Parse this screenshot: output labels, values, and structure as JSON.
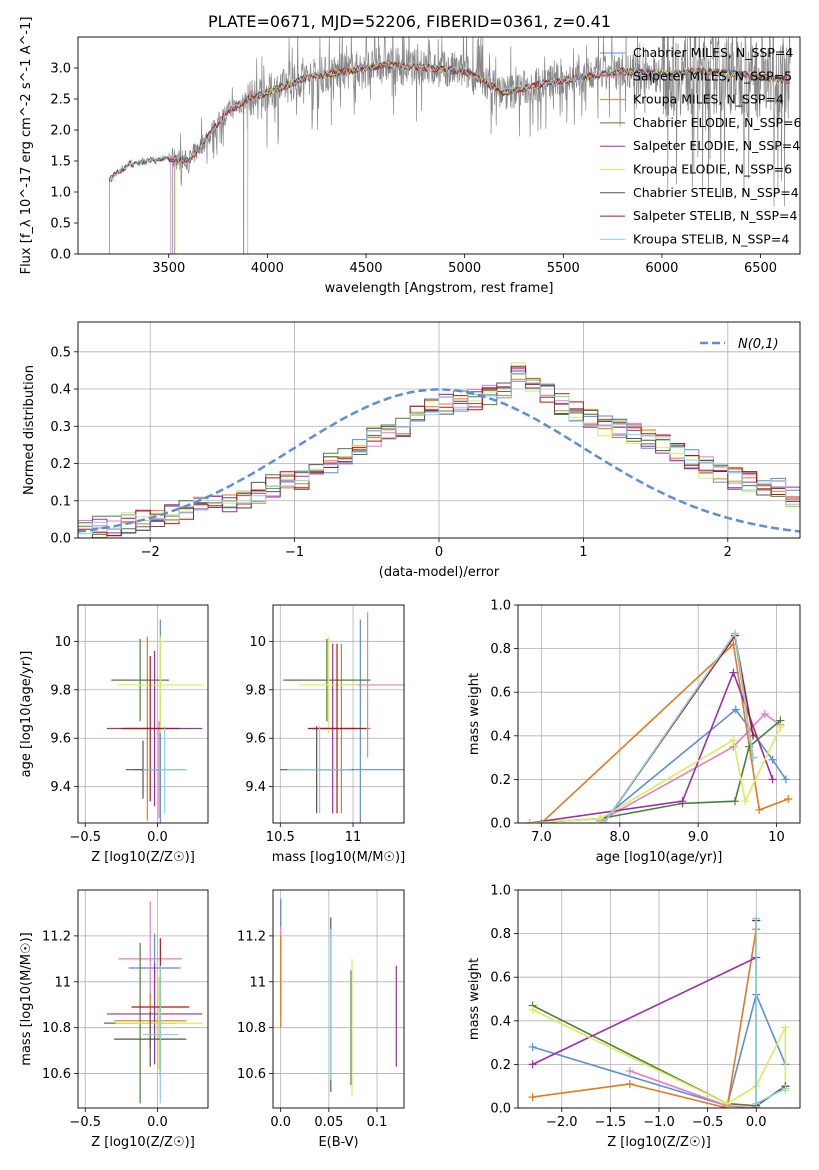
{
  "figure": {
    "title": "PLATE=0671, MJD=52206, FIBERID=0361, z=0.41"
  },
  "colors": {
    "chabrier_miles": "#5b8fd6",
    "salpeter_miles": "#e37fbf",
    "kroupa_miles": "#e07b22",
    "chabrier_elodie": "#4d7f3c",
    "salpeter_elodie": "#9a30a8",
    "kroupa_elodie": "#d9ec5a",
    "chabrier_stelib": "#555555",
    "salpeter_stelib": "#b01616",
    "kroupa_stelib": "#8fd0dd",
    "normal_curve": "#5b8fd6"
  },
  "chart_data": [
    {
      "type": "line",
      "panel": "spectrum",
      "xlabel": "wavelength [Angstrom, rest frame]",
      "ylabel": "Flux [f_λ 10^-17 erg cm^-2 s^-1 A^-1]",
      "xlim": [
        3040,
        6700
      ],
      "ylim": [
        0,
        3.5
      ],
      "xticks": [
        3500,
        4000,
        4500,
        5000,
        5500,
        6000,
        6500
      ],
      "yticks": [
        0.0,
        0.5,
        1.0,
        1.5,
        2.0,
        2.5,
        3.0
      ],
      "legend_loc": "upper right",
      "legend": [
        "Chabrier MILES, N_SSP=4",
        "Salpeter MILES, N_SSP=5",
        "Kroupa MILES, N_SSP=4",
        "Chabrier ELODIE, N_SSP=6",
        "Salpeter ELODIE, N_SSP=4",
        "Kroupa ELODIE, N_SSP=6",
        "Chabrier STELIB, N_SSP=4",
        "Salpeter STELIB, N_SSP=4",
        "Kroupa STELIB, N_SSP=4"
      ],
      "continuum_x": [
        3200,
        3300,
        3400,
        3500,
        3600,
        3700,
        3800,
        3900,
        4000,
        4200,
        4400,
        4600,
        4800,
        5000,
        5200,
        5400,
        5600,
        5800,
        6000,
        6200,
        6400,
        6650
      ],
      "continuum_y": [
        1.2,
        1.45,
        1.5,
        1.55,
        1.5,
        1.9,
        2.3,
        2.5,
        2.6,
        2.85,
        2.95,
        3.05,
        3.0,
        2.95,
        2.6,
        2.75,
        2.85,
        2.95,
        2.9,
        2.95,
        2.9,
        2.8
      ],
      "data_x_range": [
        3200,
        6650
      ]
    },
    {
      "type": "step",
      "panel": "residuals",
      "xlabel": "(data-model)/error",
      "ylabel": "Normed distribution",
      "xlim": [
        -2.5,
        2.5
      ],
      "ylim": [
        0,
        0.58
      ],
      "xticks": [
        -2,
        -1,
        0,
        1,
        2
      ],
      "yticks": [
        0.0,
        0.1,
        0.2,
        0.3,
        0.4,
        0.5
      ],
      "legend_loc": "upper right",
      "normal_label": "N(0,1)",
      "bin_edges_start": -2.5,
      "bin_width": 0.1,
      "hist_values": [
        0.02,
        0.03,
        0.035,
        0.04,
        0.05,
        0.055,
        0.06,
        0.07,
        0.08,
        0.095,
        0.1,
        0.11,
        0.12,
        0.14,
        0.15,
        0.16,
        0.18,
        0.2,
        0.22,
        0.25,
        0.27,
        0.29,
        0.3,
        0.33,
        0.35,
        0.36,
        0.37,
        0.37,
        0.38,
        0.39,
        0.45,
        0.42,
        0.39,
        0.36,
        0.34,
        0.32,
        0.3,
        0.29,
        0.28,
        0.27,
        0.25,
        0.23,
        0.21,
        0.19,
        0.17,
        0.16,
        0.15,
        0.14,
        0.13,
        0.11,
        0.1,
        0.09,
        0.08,
        0.07,
        0.06,
        0.05,
        0.045,
        0.04,
        0.035,
        0.03
      ]
    },
    {
      "type": "scatter",
      "panel": "age_vs_Z",
      "xlabel": "Z [log10(Z/Z☉)]",
      "ylabel": "age [log10(age/yr)]",
      "xlim": [
        -0.55,
        0.35
      ],
      "ylim": [
        9.25,
        10.15
      ],
      "xticks": [
        -0.5,
        0.0
      ],
      "yticks": [
        9.4,
        9.6,
        9.8,
        10.0
      ],
      "points": [
        {
          "x": 0.02,
          "y": 9.47,
          "xerr": 0.18,
          "yerr": 0.62,
          "c": "chabrier_miles"
        },
        {
          "x": 0.01,
          "y": 9.47,
          "xerr": 0.12,
          "yerr": 0.2,
          "c": "salpeter_miles"
        },
        {
          "x": -0.07,
          "y": 9.64,
          "xerr": 0.15,
          "yerr": 0.38,
          "c": "kroupa_miles"
        },
        {
          "x": -0.12,
          "y": 9.84,
          "xerr": 0.2,
          "yerr": 0.17,
          "c": "chabrier_elodie"
        },
        {
          "x": -0.02,
          "y": 9.64,
          "xerr": 0.33,
          "yerr": 0.32,
          "c": "salpeter_elodie"
        },
        {
          "x": 0.02,
          "y": 9.82,
          "xerr": 0.3,
          "yerr": 0.2,
          "c": "kroupa_elodie"
        },
        {
          "x": -0.1,
          "y": 9.47,
          "xerr": 0.12,
          "yerr": 0.12,
          "c": "chabrier_stelib"
        },
        {
          "x": -0.05,
          "y": 9.64,
          "xerr": 0.2,
          "yerr": 0.3,
          "c": "salpeter_stelib"
        },
        {
          "x": 0.05,
          "y": 9.47,
          "xerr": 0.15,
          "yerr": 0.18,
          "c": "kroupa_stelib"
        }
      ]
    },
    {
      "type": "scatter",
      "panel": "age_vs_mass",
      "xlabel": "mass [log10(M/M☉)]",
      "ylabel": "",
      "xlim": [
        10.45,
        11.35
      ],
      "ylim": [
        9.25,
        10.15
      ],
      "xticks": [
        10.5,
        11.0
      ],
      "yticks": [
        9.4,
        9.6,
        9.8,
        10.0
      ],
      "points": [
        {
          "x": 11.05,
          "y": 9.47,
          "xerr": 0.3,
          "yerr": 0.62,
          "c": "chabrier_miles"
        },
        {
          "x": 11.1,
          "y": 9.82,
          "xerr": 0.25,
          "yerr": 0.3,
          "c": "salpeter_miles"
        },
        {
          "x": 10.92,
          "y": 9.64,
          "xerr": 0.2,
          "yerr": 0.35,
          "c": "kroupa_miles"
        },
        {
          "x": 10.82,
          "y": 9.84,
          "xerr": 0.3,
          "yerr": 0.17,
          "c": "chabrier_elodie"
        },
        {
          "x": 10.86,
          "y": 9.64,
          "xerr": 0.15,
          "yerr": 0.35,
          "c": "salpeter_elodie"
        },
        {
          "x": 10.83,
          "y": 9.82,
          "xerr": 0.2,
          "yerr": 0.2,
          "c": "kroupa_elodie"
        },
        {
          "x": 10.75,
          "y": 9.47,
          "xerr": 0.25,
          "yerr": 0.18,
          "c": "chabrier_stelib"
        },
        {
          "x": 10.89,
          "y": 9.64,
          "xerr": 0.2,
          "yerr": 0.35,
          "c": "salpeter_stelib"
        },
        {
          "x": 10.77,
          "y": 9.47,
          "xerr": 0.22,
          "yerr": 0.18,
          "c": "kroupa_stelib"
        }
      ]
    },
    {
      "type": "line",
      "panel": "weight_vs_age",
      "xlabel": "age [log10(age/yr)]",
      "ylabel": "mass weight",
      "xlim": [
        6.7,
        10.3
      ],
      "ylim": [
        0,
        1.0
      ],
      "xticks": [
        7,
        8,
        9,
        10
      ],
      "yticks": [
        0.0,
        0.2,
        0.4,
        0.6,
        0.8,
        1.0
      ],
      "series": [
        {
          "c": "chabrier_miles",
          "x": [
            7.75,
            9.48,
            9.95,
            10.12
          ],
          "y": [
            0.01,
            0.52,
            0.29,
            0.2
          ]
        },
        {
          "c": "salpeter_miles",
          "x": [
            7.75,
            9.45,
            9.85,
            10.05
          ],
          "y": [
            0.01,
            0.35,
            0.5,
            0.45
          ]
        },
        {
          "c": "kroupa_miles",
          "x": [
            7.0,
            9.45,
            9.78,
            10.15
          ],
          "y": [
            0.0,
            0.82,
            0.06,
            0.11
          ]
        },
        {
          "c": "chabrier_elodie",
          "x": [
            6.85,
            7.75,
            8.8,
            9.47,
            9.65,
            10.05
          ],
          "y": [
            0.0,
            0.02,
            0.09,
            0.1,
            0.35,
            0.47
          ]
        },
        {
          "c": "salpeter_elodie",
          "x": [
            6.85,
            8.8,
            9.45,
            9.95
          ],
          "y": [
            0.0,
            0.1,
            0.69,
            0.2
          ]
        },
        {
          "c": "kroupa_elodie",
          "x": [
            6.85,
            7.75,
            9.45,
            9.6,
            10.05
          ],
          "y": [
            0.0,
            0.02,
            0.38,
            0.1,
            0.44
          ]
        },
        {
          "c": "chabrier_stelib",
          "x": [
            7.8,
            9.47,
            9.7
          ],
          "y": [
            0.0,
            0.86,
            0.3
          ]
        },
        {
          "c": "salpeter_stelib",
          "x": [
            7.8,
            9.47,
            9.7
          ],
          "y": [
            0.0,
            0.86,
            0.4
          ]
        },
        {
          "c": "kroupa_stelib",
          "x": [
            7.8,
            9.47,
            9.7
          ],
          "y": [
            0.0,
            0.87,
            0.3
          ]
        }
      ]
    },
    {
      "type": "scatter",
      "panel": "mass_vs_Z",
      "xlabel": "Z [log10(Z/Z☉)]",
      "ylabel": "mass [log10(M/M☉)]",
      "xlim": [
        -0.55,
        0.35
      ],
      "ylim": [
        10.45,
        11.4
      ],
      "xticks": [
        -0.5,
        0.0
      ],
      "yticks": [
        10.6,
        10.8,
        11.0,
        11.2
      ],
      "points": [
        {
          "x": -0.02,
          "y": 11.06,
          "xerr": 0.18,
          "yerr": 0.15,
          "c": "chabrier_miles"
        },
        {
          "x": -0.05,
          "y": 11.1,
          "xerr": 0.22,
          "yerr": 0.25,
          "c": "salpeter_miles"
        },
        {
          "x": -0.05,
          "y": 10.83,
          "xerr": 0.25,
          "yerr": 0.12,
          "c": "kroupa_miles"
        },
        {
          "x": -0.12,
          "y": 10.82,
          "xerr": 0.25,
          "yerr": 0.35,
          "c": "chabrier_elodie"
        },
        {
          "x": -0.02,
          "y": 10.86,
          "xerr": 0.33,
          "yerr": 0.22,
          "c": "salpeter_elodie"
        },
        {
          "x": 0.01,
          "y": 10.82,
          "xerr": 0.3,
          "yerr": 0.2,
          "c": "kroupa_elodie"
        },
        {
          "x": -0.05,
          "y": 10.75,
          "xerr": 0.25,
          "yerr": 0.12,
          "c": "chabrier_stelib"
        },
        {
          "x": 0.02,
          "y": 10.89,
          "xerr": 0.2,
          "yerr": 0.3,
          "c": "salpeter_stelib"
        },
        {
          "x": 0.02,
          "y": 10.77,
          "xerr": 0.12,
          "yerr": 0.3,
          "c": "kroupa_stelib"
        }
      ]
    },
    {
      "type": "scatter",
      "panel": "mass_vs_ebv",
      "xlabel": "E(B-V)",
      "ylabel": "",
      "xlim": [
        -0.008,
        0.128
      ],
      "ylim": [
        10.45,
        11.4
      ],
      "xticks": [
        0.0,
        0.05,
        0.1
      ],
      "yticks": [
        10.6,
        10.8,
        11.0,
        11.2
      ],
      "points": [
        {
          "x": 0.0,
          "y": 11.1,
          "xerr": 0.0,
          "yerr": 0.25,
          "c": "salpeter_miles"
        },
        {
          "x": 0.0,
          "y": 11.0,
          "xerr": 0.0,
          "yerr": 0.2,
          "c": "kroupa_miles"
        },
        {
          "x": 0.0,
          "y": 11.3,
          "xerr": 0.0,
          "yerr": 0.06,
          "c": "chabrier_miles"
        },
        {
          "x": 0.052,
          "y": 10.9,
          "xerr": 0.0,
          "yerr": 0.38,
          "c": "chabrier_stelib"
        },
        {
          "x": 0.052,
          "y": 10.9,
          "xerr": 0.0,
          "yerr": 0.33,
          "c": "kroupa_stelib"
        },
        {
          "x": 0.073,
          "y": 10.8,
          "xerr": 0.0,
          "yerr": 0.25,
          "c": "chabrier_elodie"
        },
        {
          "x": 0.074,
          "y": 10.8,
          "xerr": 0.0,
          "yerr": 0.3,
          "c": "kroupa_elodie"
        },
        {
          "x": 0.12,
          "y": 10.85,
          "xerr": 0.0,
          "yerr": 0.22,
          "c": "salpeter_elodie"
        }
      ]
    },
    {
      "type": "line",
      "panel": "weight_vs_Z",
      "xlabel": "Z [log10(Z/Z☉)]",
      "ylabel": "mass weight",
      "xlim": [
        -2.45,
        0.45
      ],
      "ylim": [
        0,
        1.0
      ],
      "xticks": [
        -2.0,
        -1.5,
        -1.0,
        -0.5,
        0.0
      ],
      "yticks": [
        0.0,
        0.2,
        0.4,
        0.6,
        0.8,
        1.0
      ],
      "series": [
        {
          "c": "chabrier_miles",
          "x": [
            -2.3,
            -0.3,
            0.0,
            0.3
          ],
          "y": [
            0.28,
            0.01,
            0.52,
            0.2
          ]
        },
        {
          "c": "salpeter_miles",
          "x": [
            -1.3,
            -0.3,
            0.0
          ],
          "y": [
            0.17,
            0.01,
            0.0
          ]
        },
        {
          "c": "kroupa_miles",
          "x": [
            -2.3,
            -1.3,
            -0.3,
            0.0
          ],
          "y": [
            0.05,
            0.11,
            0.0,
            0.82
          ]
        },
        {
          "c": "chabrier_elodie",
          "x": [
            -2.3,
            -0.3,
            0.0,
            0.3
          ],
          "y": [
            0.47,
            0.02,
            0.01,
            0.1
          ]
        },
        {
          "c": "salpeter_elodie",
          "x": [
            -2.3,
            0.0
          ],
          "y": [
            0.2,
            0.69
          ]
        },
        {
          "c": "kroupa_elodie",
          "x": [
            -2.3,
            -0.3,
            0.0,
            0.3,
            0.3
          ],
          "y": [
            0.45,
            0.02,
            0.1,
            0.37,
            0.08
          ]
        },
        {
          "c": "chabrier_stelib",
          "x": [
            0.0,
            0.0,
            0.3
          ],
          "y": [
            0.86,
            0.01,
            0.1
          ]
        },
        {
          "c": "salpeter_stelib",
          "x": [
            0.0,
            0.0
          ],
          "y": [
            0.86,
            0.0
          ]
        },
        {
          "c": "kroupa_stelib",
          "x": [
            0.0,
            0.0,
            0.3
          ],
          "y": [
            0.87,
            0.02,
            0.09
          ]
        }
      ]
    }
  ]
}
